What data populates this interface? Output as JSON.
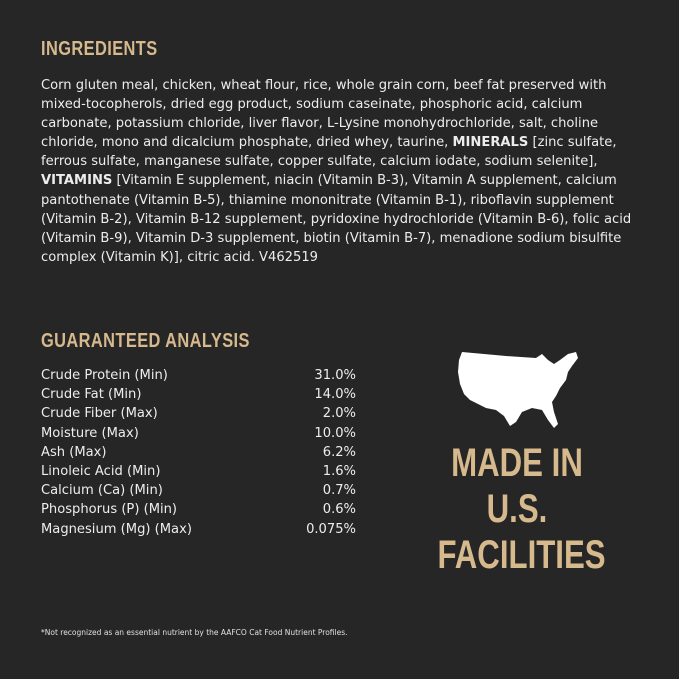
{
  "ingredients": {
    "title": "INGREDIENTS",
    "part1": "Corn gluten meal, chicken, wheat flour, rice, whole grain corn, beef fat preserved with mixed-tocopherols, dried egg product, sodium caseinate, phosphoric acid, calcium carbonate, potassium chloride, liver flavor, L-Lysine monohydrochloride, salt, choline chloride, mono and dicalcium phosphate, dried whey, taurine, ",
    "minerals_label": "MINERALS",
    "part2": " [zinc sulfate, ferrous sulfate, manganese sulfate, copper sulfate, calcium iodate, sodium selenite], ",
    "vitamins_label": "VITAMINS",
    "part3": " [Vitamin E supplement, niacin (Vitamin B-3), Vitamin A supplement, calcium pantothenate (Vitamin B-5), thiamine mononitrate (Vitamin B-1), riboflavin supplement (Vitamin B-2), Vitamin B-12 supplement, pyridoxine hydrochloride (Vitamin B-6), folic acid (Vitamin B-9), Vitamin D-3 supplement, biotin (Vitamin B-7), menadione sodium bisulfite complex (Vitamin K)], citric acid. V462519"
  },
  "analysis": {
    "title": "GUARANTEED ANALYSIS",
    "rows": [
      {
        "label": "Crude Protein (Min)",
        "value": "31.0%"
      },
      {
        "label": "Crude Fat (Min)",
        "value": "14.0%"
      },
      {
        "label": "Crude Fiber (Max)",
        "value": "2.0%"
      },
      {
        "label": "Moisture (Max)",
        "value": "10.0%"
      },
      {
        "label": "Ash (Max)",
        "value": "6.2%"
      },
      {
        "label": "Linoleic Acid (Min)",
        "value": "1.6%"
      },
      {
        "label": "Calcium (Ca) (Min)",
        "value": "0.7%"
      },
      {
        "label": "Phosphorus (P) (Min)",
        "value": "0.6%"
      },
      {
        "label": "Magnesium (Mg) (Max)",
        "value": "0.075%"
      }
    ]
  },
  "made_in": {
    "line1": "MADE IN",
    "line2": "U.S.",
    "line3": "FACILITIES",
    "icon": "usa-map-icon"
  },
  "footnote": "*Not recognized as an essential nutrient by the AAFCO Cat Food Nutrient Profiles.",
  "colors": {
    "background": "#262626",
    "accent": "#d6b98c",
    "text": "#ededed"
  }
}
